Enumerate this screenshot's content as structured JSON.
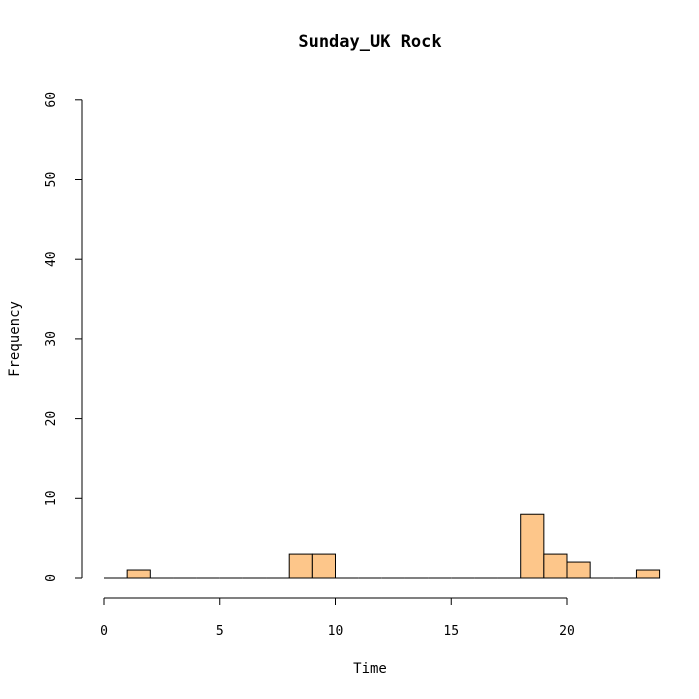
{
  "chart_data": {
    "type": "bar",
    "title": "Sunday_UK Rock",
    "xlabel": "Time",
    "ylabel": "Frequency",
    "xlim": [
      0,
      24
    ],
    "ylim": [
      0,
      60
    ],
    "x_ticks": [
      "0",
      "5",
      "10",
      "15",
      "20"
    ],
    "y_ticks": [
      "0",
      "10",
      "20",
      "30",
      "40",
      "50",
      "60"
    ],
    "bin_width": 1,
    "bins": [
      {
        "start": 0,
        "count": 0
      },
      {
        "start": 1,
        "count": 1
      },
      {
        "start": 2,
        "count": 0
      },
      {
        "start": 3,
        "count": 0
      },
      {
        "start": 4,
        "count": 0
      },
      {
        "start": 5,
        "count": 0
      },
      {
        "start": 6,
        "count": 0
      },
      {
        "start": 7,
        "count": 0
      },
      {
        "start": 8,
        "count": 3
      },
      {
        "start": 9,
        "count": 3
      },
      {
        "start": 10,
        "count": 0
      },
      {
        "start": 11,
        "count": 0
      },
      {
        "start": 12,
        "count": 0
      },
      {
        "start": 13,
        "count": 0
      },
      {
        "start": 14,
        "count": 0
      },
      {
        "start": 15,
        "count": 0
      },
      {
        "start": 16,
        "count": 0
      },
      {
        "start": 17,
        "count": 0
      },
      {
        "start": 18,
        "count": 8
      },
      {
        "start": 19,
        "count": 3
      },
      {
        "start": 20,
        "count": 2
      },
      {
        "start": 21,
        "count": 0
      },
      {
        "start": 22,
        "count": 0
      },
      {
        "start": 23,
        "count": 1
      }
    ],
    "grid": false,
    "bar_fill": "#FDC68A",
    "bar_stroke": "#000000"
  }
}
